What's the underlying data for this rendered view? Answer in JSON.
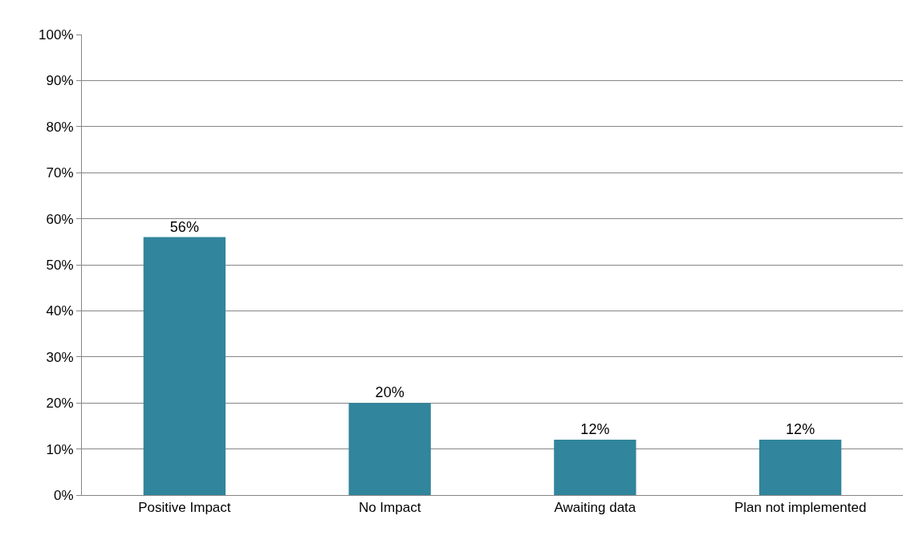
{
  "chart_data": {
    "type": "bar",
    "categories": [
      "Positive Impact",
      "No Impact",
      "Awaiting data",
      "Plan not implemented"
    ],
    "values": [
      56,
      20,
      12,
      12
    ],
    "color": "#31859c",
    "value_labels": [
      "56%",
      "20%",
      "12%",
      "12%"
    ],
    "ylim": [
      0,
      100
    ],
    "yticks": [
      {
        "value": 0,
        "label": "0%"
      },
      {
        "value": 10,
        "label": "10%"
      },
      {
        "value": 20,
        "label": "20%"
      },
      {
        "value": 30,
        "label": "30%"
      },
      {
        "value": 40,
        "label": "40%"
      },
      {
        "value": 50,
        "label": "50%"
      },
      {
        "value": 60,
        "label": "60%"
      },
      {
        "value": 70,
        "label": "70%"
      },
      {
        "value": 80,
        "label": "80%"
      },
      {
        "value": 90,
        "label": "90%"
      },
      {
        "value": 100,
        "label": "100%"
      }
    ],
    "grid": "y"
  }
}
